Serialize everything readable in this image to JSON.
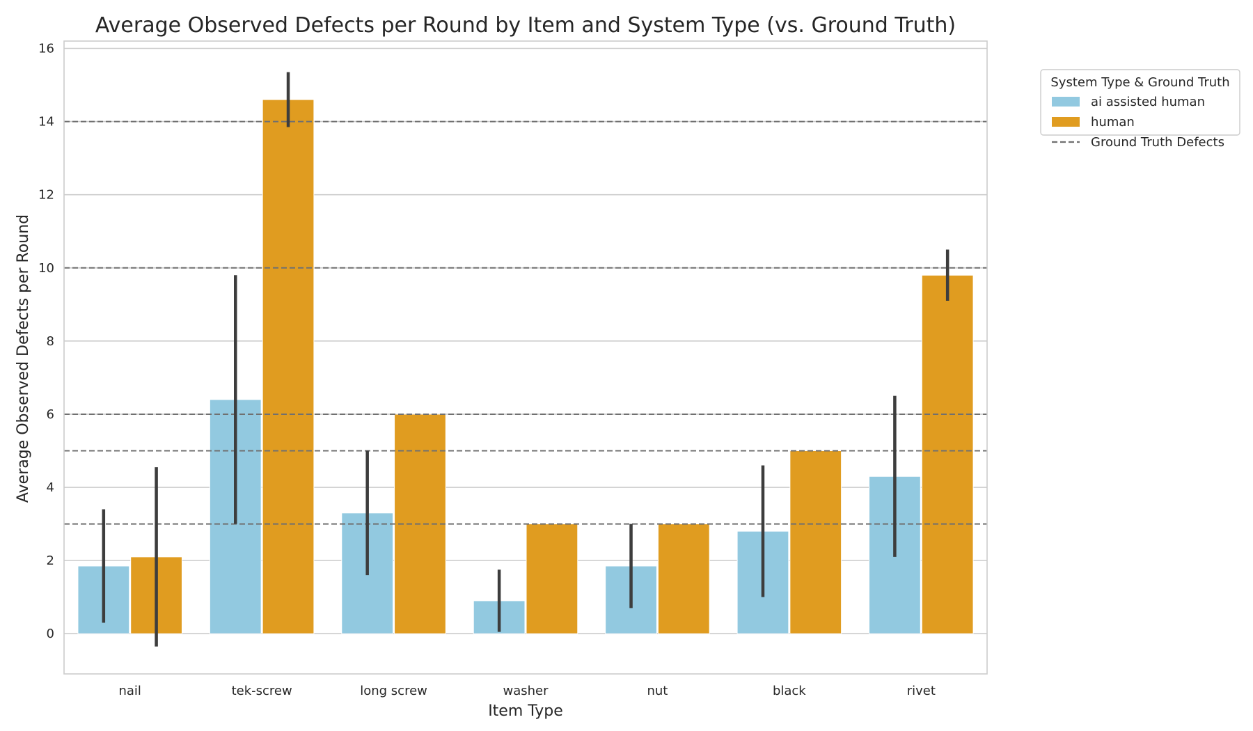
{
  "chart_data": {
    "type": "bar",
    "title": "Average Observed Defects per Round by Item and System Type (vs. Ground Truth)",
    "xlabel": "Item Type",
    "ylabel": "Average Observed Defects per Round",
    "ylim": [
      -1.1,
      16.2
    ],
    "yticks": [
      0,
      2,
      4,
      6,
      8,
      10,
      12,
      14,
      16
    ],
    "grid": "horizontal",
    "categories": [
      "nail",
      "tek-screw",
      "long screw",
      "washer",
      "nut",
      "black",
      "rivet"
    ],
    "series": [
      {
        "name": "ai assisted human",
        "color": "#92c9e0",
        "values": [
          1.85,
          6.4,
          3.3,
          0.9,
          1.85,
          2.8,
          4.3
        ],
        "ci_low": [
          0.3,
          3.0,
          1.6,
          0.05,
          0.7,
          1.0,
          2.1
        ],
        "ci_high": [
          3.4,
          9.8,
          5.0,
          1.75,
          3.0,
          4.6,
          6.5
        ]
      },
      {
        "name": "human",
        "color": "#e09c20",
        "values": [
          2.1,
          14.6,
          6.0,
          3.0,
          3.0,
          5.0,
          9.8
        ],
        "ci_low": [
          -0.35,
          13.85,
          6.0,
          3.0,
          3.0,
          5.0,
          9.1
        ],
        "ci_high": [
          4.55,
          15.35,
          6.0,
          3.0,
          3.0,
          5.0,
          10.5
        ]
      }
    ],
    "ground_truth": {
      "name": "Ground Truth Defects",
      "color": "#707070",
      "values": [
        3,
        5,
        6,
        10,
        14
      ]
    },
    "legend": {
      "title": "System Type & Ground Truth",
      "placement": "outside-upper-right"
    },
    "errorbar_color": "#3d3d3d"
  }
}
